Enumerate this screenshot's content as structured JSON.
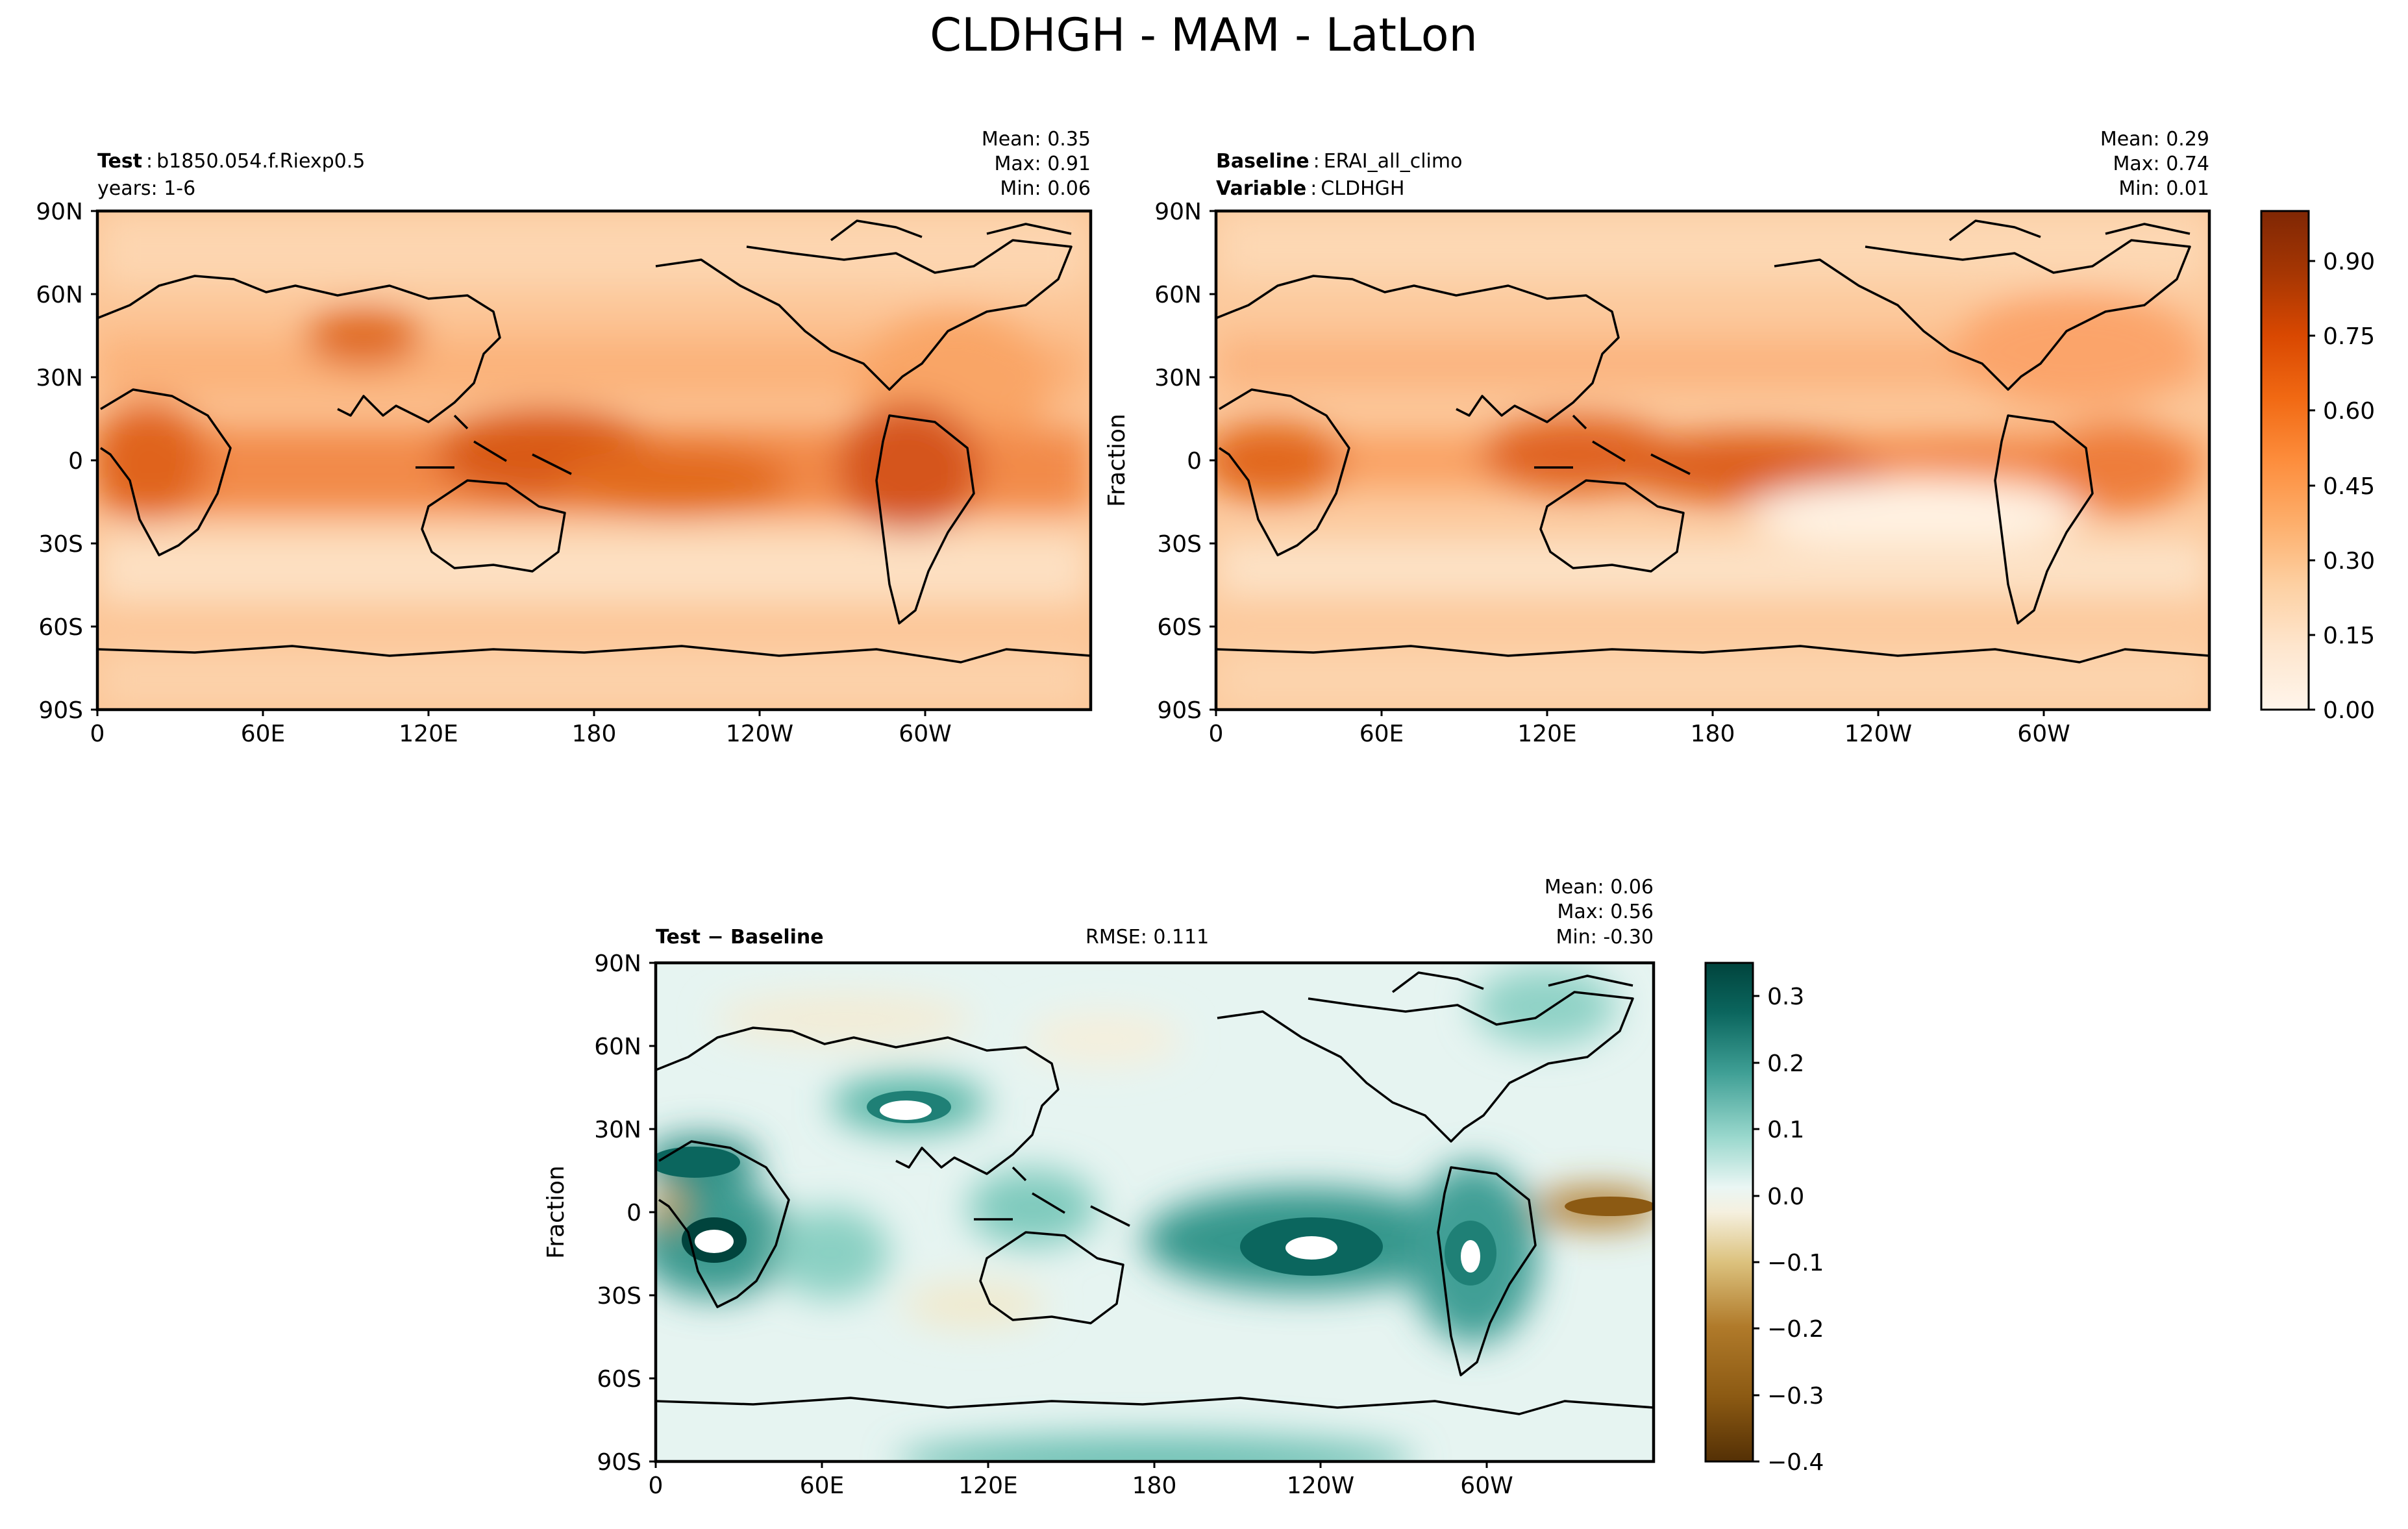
{
  "figure_title": "CLDHGH - MAM - LatLon",
  "colors": {
    "seq_ramp": [
      "#fff5eb",
      "#fee6ce",
      "#fdd0a2",
      "#fdae6b",
      "#fd8d3c",
      "#f16913",
      "#d94801",
      "#a63603",
      "#7f2704"
    ],
    "div_ramp_neg": [
      "#f5f0df",
      "#ecdcab",
      "#dcc27e",
      "#c99a46",
      "#b07a2a",
      "#8c5a13",
      "#6e430a",
      "#543005"
    ],
    "div_ramp_pos": [
      "#eaf6f4",
      "#c7eae5",
      "#9ad8cd",
      "#6cc0b3",
      "#3f9f95",
      "#1f8076",
      "#0b665e",
      "#01443d"
    ],
    "frame": "#000000",
    "coast": "#000000"
  },
  "panels": {
    "test": {
      "label_bold": "Test",
      "label_sep": ":",
      "label_value": "b1850.054.f.Riexp0.5",
      "line2": "years: 1-6",
      "stats": {
        "mean": "Mean:  0.35",
        "max": "Max:  0.91",
        "min": "Min:  0.06"
      }
    },
    "baseline": {
      "label_bold": "Baseline",
      "label_sep": ":",
      "label_value": "ERAI_all_climo",
      "line2_bold": "Variable",
      "line2_sep": ":",
      "line2_value": "CLDHGH",
      "ylabel": "Fraction",
      "stats": {
        "mean": "Mean:  0.29",
        "max": "Max:  0.74",
        "min": "Min:  0.01"
      }
    },
    "diff": {
      "label": "Test − Baseline",
      "rmse": "RMSE: 0.111",
      "ylabel": "Fraction",
      "stats": {
        "mean": "Mean:  0.06",
        "max": "Max:  0.56",
        "min": "Min: -0.30"
      }
    }
  },
  "chart_data": [
    {
      "type": "heatmap",
      "title": "Test: b1850.054.f.Riexp0.5",
      "subtitle": "years: 1-6",
      "xlabel": "",
      "ylabel": "",
      "x_ticks": [
        "0",
        "60E",
        "120E",
        "180",
        "120W",
        "60W"
      ],
      "y_ticks": [
        "90N",
        "60N",
        "30N",
        "0",
        "30S",
        "60S",
        "90S"
      ],
      "stats": {
        "mean": 0.35,
        "max": 0.91,
        "min": 0.06
      },
      "colorbar": {
        "range": [
          0.0,
          1.0
        ],
        "ticks": [
          "0.00",
          "0.15",
          "0.30",
          "0.45",
          "0.60",
          "0.75",
          "0.90"
        ]
      },
      "highlights": [
        {
          "lon": 15,
          "lat": 0,
          "value": 0.65
        },
        {
          "lon": 85,
          "lat": 37,
          "value": 0.7
        },
        {
          "lon": 120,
          "lat": 2,
          "value": 0.75
        },
        {
          "lon": 150,
          "lat": 0,
          "value": 0.75
        },
        {
          "lon": 190,
          "lat": -5,
          "value": 0.6
        },
        {
          "lon": 300,
          "lat": -5,
          "value": 0.7
        },
        {
          "lon": 340,
          "lat": 25,
          "value": 0.4
        }
      ]
    },
    {
      "type": "heatmap",
      "title": "Baseline: ERAI_all_climo",
      "subtitle": "Variable: CLDHGH",
      "xlabel": "",
      "ylabel": "Fraction",
      "x_ticks": [
        "0",
        "60E",
        "120E",
        "180",
        "120W",
        "60W"
      ],
      "y_ticks": [
        "90N",
        "60N",
        "30N",
        "0",
        "30S",
        "60S",
        "90S"
      ],
      "stats": {
        "mean": 0.29,
        "max": 0.74,
        "min": 0.01
      },
      "colorbar": {
        "range": [
          0.0,
          1.0
        ],
        "ticks": [
          "0.00",
          "0.15",
          "0.30",
          "0.45",
          "0.60",
          "0.75",
          "0.90"
        ]
      },
      "highlights": [
        {
          "lon": 15,
          "lat": 2,
          "value": 0.6
        },
        {
          "lon": 115,
          "lat": 0,
          "value": 0.65
        },
        {
          "lon": 155,
          "lat": -2,
          "value": 0.7
        },
        {
          "lon": 250,
          "lat": 5,
          "value": 0.45
        },
        {
          "lon": 295,
          "lat": -5,
          "value": 0.6
        },
        {
          "lon": 330,
          "lat": 5,
          "value": 0.5
        }
      ]
    },
    {
      "type": "heatmap",
      "title": "Test − Baseline",
      "subtitle": "RMSE: 0.111",
      "xlabel": "",
      "ylabel": "Fraction",
      "x_ticks": [
        "0",
        "60E",
        "120E",
        "180",
        "120W",
        "60W"
      ],
      "y_ticks": [
        "90N",
        "60N",
        "30N",
        "0",
        "30S",
        "60S",
        "90S"
      ],
      "stats": {
        "mean": 0.06,
        "max": 0.56,
        "min": -0.3
      },
      "colorbar": {
        "range": [
          -0.4,
          0.35
        ],
        "ticks": [
          "0.3",
          "0.2",
          "0.1",
          "0.0",
          "−0.1",
          "−0.2",
          "−0.3",
          "−0.4"
        ]
      },
      "highlights": [
        {
          "lon": 25,
          "lat": -15,
          "value": 0.45
        },
        {
          "lon": 90,
          "lat": 35,
          "value": 0.5
        },
        {
          "lon": 230,
          "lat": -10,
          "value": 0.4
        },
        {
          "lon": 290,
          "lat": -15,
          "value": 0.35
        },
        {
          "lon": 340,
          "lat": 0,
          "value": -0.2
        },
        {
          "lon": 5,
          "lat": 0,
          "value": -0.1
        },
        {
          "lon": 15,
          "lat": 15,
          "value": 0.25
        }
      ]
    }
  ]
}
